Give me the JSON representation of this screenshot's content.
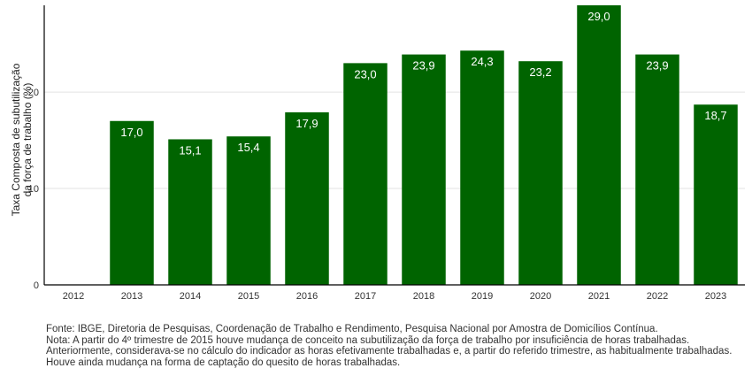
{
  "chart_data": {
    "type": "bar",
    "title": "",
    "xlabel": "",
    "ylabel_lines": [
      "Taxa Composta de subutilização",
      "da força de trabalho (%)"
    ],
    "categories": [
      "2012",
      "2013",
      "2014",
      "2015",
      "2016",
      "2017",
      "2018",
      "2019",
      "2020",
      "2021",
      "2022",
      "2023"
    ],
    "values": [
      null,
      17.0,
      15.1,
      15.4,
      17.9,
      23.0,
      23.9,
      24.3,
      23.2,
      29.0,
      23.9,
      18.7
    ],
    "value_labels": [
      "",
      "17,0",
      "15,1",
      "15,4",
      "17,9",
      "23,0",
      "23,9",
      "24,3",
      "23,2",
      "29,0",
      "23,9",
      "18,7"
    ],
    "ylim": [
      0,
      29.0
    ],
    "yticks": [
      0,
      10,
      20
    ],
    "ytick_labels": [
      "0",
      "10",
      "20"
    ],
    "grid": "horizontal",
    "bar_color": "#006400"
  },
  "notes": [
    "Fonte: IBGE, Diretoria de Pesquisas, Coordenação de Trabalho e Rendimento, Pesquisa Nacional por Amostra de Domicílios Contínua.",
    "Nota: A partir do 4º trimestre de 2015 houve mudança de conceito na subutilização da força de trabalho por insuficiência de horas trabalhadas.",
    "Anteriormente, considerava-se no cálculo do indicador as horas efetivamente trabalhadas e, a partir do referido trimestre, as habitualmente trabalhadas.",
    "Houve ainda mudança na forma de captação do quesito de horas trabalhadas."
  ]
}
